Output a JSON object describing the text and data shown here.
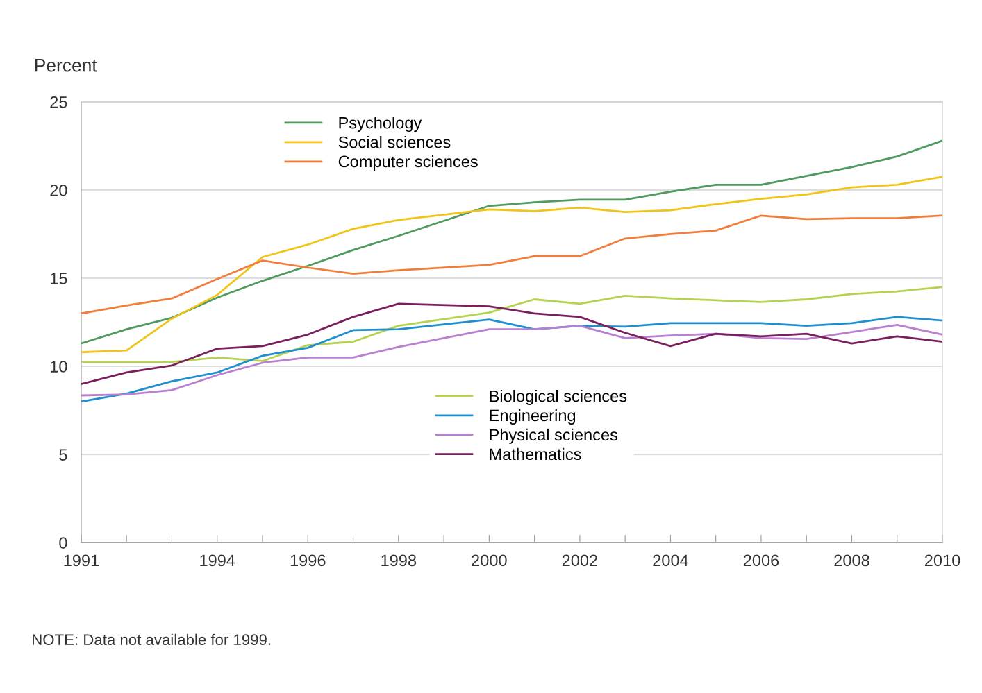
{
  "chart_data": {
    "type": "line",
    "ylabel": "Percent",
    "x": [
      1991,
      1992,
      1993,
      1994,
      1995,
      1996,
      1997,
      1998,
      2000,
      2001,
      2002,
      2003,
      2004,
      2005,
      2006,
      2007,
      2008,
      2009,
      2010
    ],
    "xlim": [
      1991,
      2010
    ],
    "xticks": [
      1991,
      {
        "value": 1992,
        "label": null
      },
      {
        "value": 1993,
        "label": null
      },
      1994,
      {
        "value": 1995,
        "label": null
      },
      1996,
      {
        "value": 1997,
        "label": null
      },
      1998,
      {
        "value": 1999,
        "label": null
      },
      2000,
      {
        "value": 2001,
        "label": null
      },
      2002,
      {
        "value": 2003,
        "label": null
      },
      2004,
      {
        "value": 2005,
        "label": null
      },
      2006,
      {
        "value": 2007,
        "label": null
      },
      2008,
      {
        "value": 2009,
        "label": null
      },
      2010
    ],
    "ylim": [
      0,
      25
    ],
    "yticks": [
      0,
      5,
      10,
      15,
      20,
      25
    ],
    "grid": "y",
    "legend": "top",
    "series": [
      {
        "name": "Psychology",
        "color": "#4f9a5f",
        "values": [
          11.3,
          12.1,
          12.75,
          13.9,
          14.85,
          15.7,
          16.6,
          17.4,
          19.1,
          19.3,
          19.45,
          19.45,
          19.9,
          20.3,
          20.3,
          20.8,
          21.3,
          21.9,
          22.8
        ]
      },
      {
        "name": "Social sciences",
        "color": "#f0c419",
        "values": [
          10.8,
          10.9,
          12.7,
          14.05,
          16.2,
          16.9,
          17.8,
          18.3,
          18.9,
          18.8,
          19.0,
          18.75,
          18.85,
          19.2,
          19.5,
          19.75,
          20.15,
          20.3,
          20.75
        ]
      },
      {
        "name": "Computer sciences",
        "color": "#f07d3c",
        "values": [
          13.0,
          13.45,
          13.85,
          14.95,
          16.0,
          15.6,
          15.25,
          15.45,
          15.75,
          16.25,
          16.25,
          17.25,
          17.5,
          17.7,
          18.55,
          18.35,
          18.4,
          18.4,
          18.55
        ]
      },
      {
        "name": "Biological sciences",
        "color": "#b5d250",
        "values": [
          10.25,
          10.25,
          10.25,
          10.5,
          10.3,
          11.2,
          11.4,
          12.3,
          13.05,
          13.8,
          13.55,
          14.0,
          13.85,
          13.75,
          13.65,
          13.8,
          14.1,
          14.25,
          14.5
        ]
      },
      {
        "name": "Engineering",
        "color": "#1e8fcf",
        "values": [
          8.0,
          8.45,
          9.15,
          9.65,
          10.6,
          11.05,
          12.05,
          12.1,
          12.65,
          12.1,
          12.3,
          12.25,
          12.45,
          12.45,
          12.45,
          12.3,
          12.45,
          12.8,
          12.6
        ]
      },
      {
        "name": "Physical sciences",
        "color": "#b97fd0",
        "values": [
          8.35,
          8.4,
          8.65,
          9.5,
          10.2,
          10.5,
          10.5,
          11.1,
          12.1,
          12.1,
          12.3,
          11.6,
          11.75,
          11.85,
          11.6,
          11.55,
          11.95,
          12.35,
          11.8
        ]
      },
      {
        "name": "Mathematics",
        "color": "#7a1f5c",
        "values": [
          9.0,
          9.65,
          10.05,
          11.0,
          11.15,
          11.8,
          12.8,
          13.55,
          13.4,
          13.0,
          12.8,
          11.9,
          11.15,
          11.85,
          11.7,
          11.85,
          11.3,
          11.7,
          11.4
        ]
      }
    ],
    "annotations": [
      "NOTE: Data not available for 1999."
    ]
  }
}
